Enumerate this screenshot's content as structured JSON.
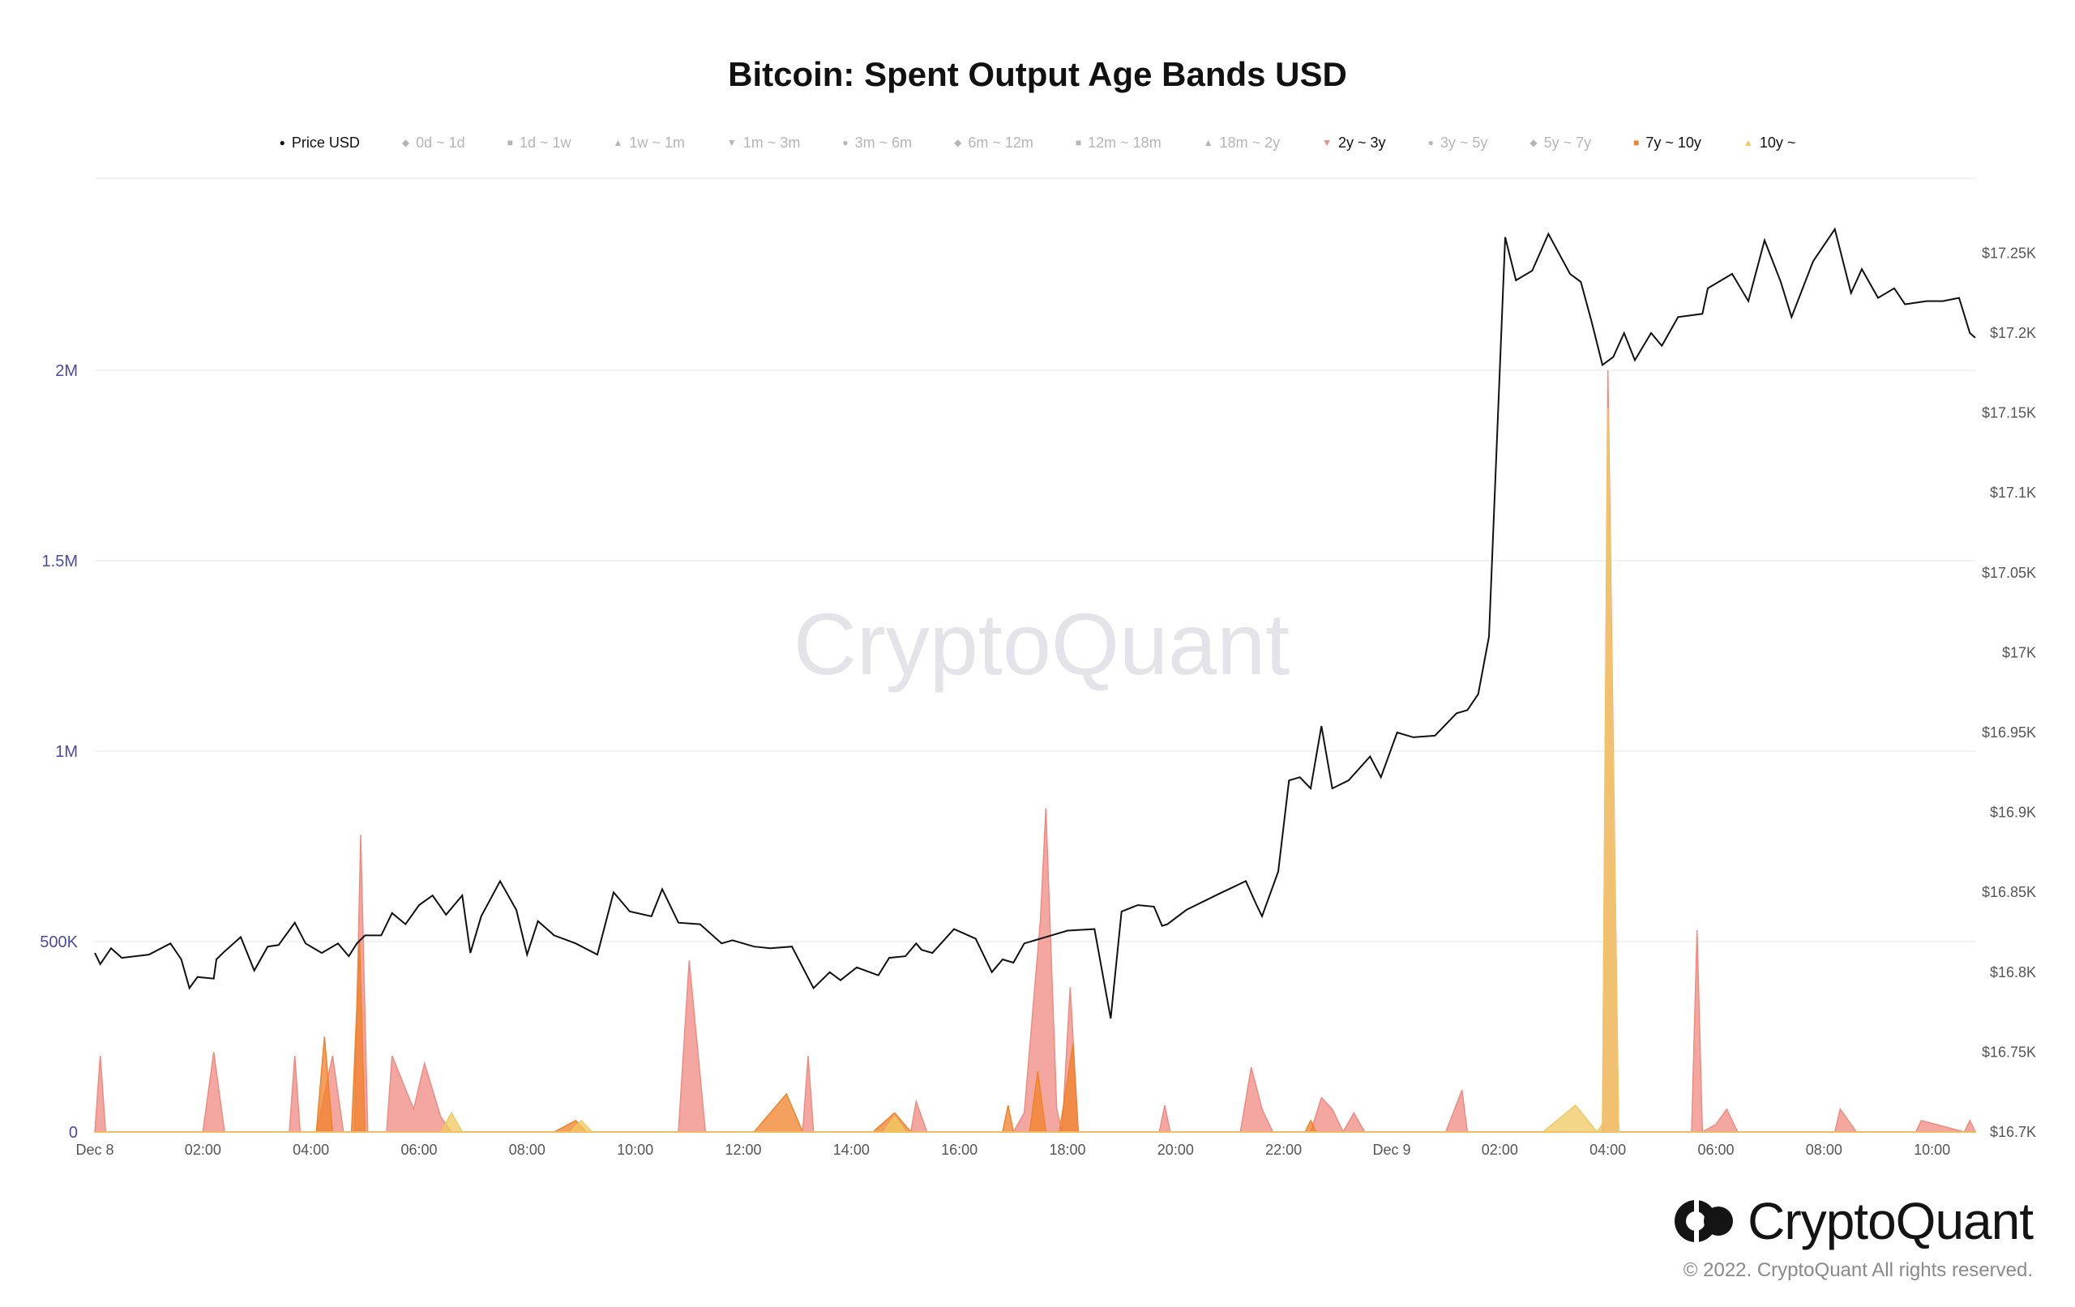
{
  "chart_data": {
    "type": "area",
    "title": "Bitcoin: Spent Output Age Bands USD",
    "watermark": "CryptoQuant",
    "legend_placement": "top",
    "grid": true,
    "legend": [
      {
        "name": "Price USD",
        "marker": "●",
        "color": "#111111",
        "active": true
      },
      {
        "name": "0d ~ 1d",
        "marker": "◆",
        "color": "#b5b5b5",
        "active": false
      },
      {
        "name": "1d ~ 1w",
        "marker": "■",
        "color": "#b5b5b5",
        "active": false
      },
      {
        "name": "1w ~ 1m",
        "marker": "▲",
        "color": "#b5b5b5",
        "active": false
      },
      {
        "name": "1m ~ 3m",
        "marker": "▼",
        "color": "#b5b5b5",
        "active": false
      },
      {
        "name": "3m ~ 6m",
        "marker": "●",
        "color": "#b5b5b5",
        "active": false
      },
      {
        "name": "6m ~ 12m",
        "marker": "◆",
        "color": "#b5b5b5",
        "active": false
      },
      {
        "name": "12m ~ 18m",
        "marker": "■",
        "color": "#b5b5b5",
        "active": false
      },
      {
        "name": "18m ~ 2y",
        "marker": "▲",
        "color": "#b5b5b5",
        "active": false
      },
      {
        "name": "2y ~ 3y",
        "marker": "▼",
        "color": "#f08a80",
        "active": true
      },
      {
        "name": "3y ~ 5y",
        "marker": "●",
        "color": "#b5b5b5",
        "active": false
      },
      {
        "name": "5y ~ 7y",
        "marker": "◆",
        "color": "#b5b5b5",
        "active": false
      },
      {
        "name": "7y ~ 10y",
        "marker": "■",
        "color": "#f0822a",
        "active": true
      },
      {
        "name": "10y ~",
        "marker": "▲",
        "color": "#f0c860",
        "active": true
      }
    ],
    "x_range_hours": [
      0,
      34.8
    ],
    "x_ticks": [
      {
        "label": "Dec 8",
        "hour": 0
      },
      {
        "label": "02:00",
        "hour": 2
      },
      {
        "label": "04:00",
        "hour": 4
      },
      {
        "label": "06:00",
        "hour": 6
      },
      {
        "label": "08:00",
        "hour": 8
      },
      {
        "label": "10:00",
        "hour": 10
      },
      {
        "label": "12:00",
        "hour": 12
      },
      {
        "label": "14:00",
        "hour": 14
      },
      {
        "label": "16:00",
        "hour": 16
      },
      {
        "label": "18:00",
        "hour": 18
      },
      {
        "label": "20:00",
        "hour": 20
      },
      {
        "label": "22:00",
        "hour": 22
      },
      {
        "label": "Dec 9",
        "hour": 24
      },
      {
        "label": "02:00",
        "hour": 26
      },
      {
        "label": "04:00",
        "hour": 28
      },
      {
        "label": "06:00",
        "hour": 30
      },
      {
        "label": "08:00",
        "hour": 32
      },
      {
        "label": "10:00",
        "hour": 34
      }
    ],
    "left_axis": {
      "ylim": [
        0,
        2500000
      ],
      "ticks": [
        {
          "label": "0",
          "value": 0
        },
        {
          "label": "500K",
          "value": 500000
        },
        {
          "label": "1M",
          "value": 1000000
        },
        {
          "label": "1.5M",
          "value": 1500000
        },
        {
          "label": "2M",
          "value": 2000000
        }
      ]
    },
    "right_axis": {
      "ylim": [
        16700,
        17280
      ],
      "ticks": [
        {
          "label": "$16.7K",
          "value": 16700
        },
        {
          "label": "$16.75K",
          "value": 16750
        },
        {
          "label": "$16.8K",
          "value": 16800
        },
        {
          "label": "$16.85K",
          "value": 16850
        },
        {
          "label": "$16.9K",
          "value": 16900
        },
        {
          "label": "$16.95K",
          "value": 16950
        },
        {
          "label": "$17K",
          "value": 17000
        },
        {
          "label": "$17.05K",
          "value": 17050
        },
        {
          "label": "$17.1K",
          "value": 17100
        },
        {
          "label": "$17.15K",
          "value": 17150
        },
        {
          "label": "$17.2K",
          "value": 17200
        },
        {
          "label": "$17.25K",
          "value": 17250
        }
      ]
    },
    "series": [
      {
        "name": "2y ~ 3y",
        "color": "#f08a80",
        "axis": "left",
        "points": [
          [
            0,
            0
          ],
          [
            0.1,
            200000
          ],
          [
            0.2,
            0
          ],
          [
            2.0,
            0
          ],
          [
            2.2,
            210000
          ],
          [
            2.4,
            0
          ],
          [
            3.6,
            0
          ],
          [
            3.7,
            200000
          ],
          [
            3.8,
            0
          ],
          [
            4.1,
            0
          ],
          [
            4.4,
            200000
          ],
          [
            4.6,
            0
          ],
          [
            4.8,
            0
          ],
          [
            4.92,
            780000
          ],
          [
            5.05,
            0
          ],
          [
            5.4,
            0
          ],
          [
            5.5,
            200000
          ],
          [
            5.9,
            60000
          ],
          [
            6.1,
            180000
          ],
          [
            6.4,
            40000
          ],
          [
            6.6,
            0
          ],
          [
            10.8,
            0
          ],
          [
            11.0,
            450000
          ],
          [
            11.3,
            0
          ],
          [
            13.1,
            0
          ],
          [
            13.2,
            200000
          ],
          [
            13.3,
            0
          ],
          [
            15.1,
            0
          ],
          [
            15.2,
            80000
          ],
          [
            15.4,
            0
          ],
          [
            17.0,
            0
          ],
          [
            17.2,
            50000
          ],
          [
            17.5,
            560000
          ],
          [
            17.6,
            850000
          ],
          [
            17.8,
            60000
          ],
          [
            17.9,
            0
          ],
          [
            18.05,
            380000
          ],
          [
            18.2,
            0
          ],
          [
            19.7,
            0
          ],
          [
            19.8,
            70000
          ],
          [
            19.9,
            0
          ],
          [
            21.2,
            0
          ],
          [
            21.4,
            170000
          ],
          [
            21.6,
            60000
          ],
          [
            21.8,
            0
          ],
          [
            22.5,
            0
          ],
          [
            22.7,
            90000
          ],
          [
            22.9,
            60000
          ],
          [
            23.1,
            0
          ],
          [
            23.3,
            50000
          ],
          [
            23.5,
            0
          ],
          [
            25.0,
            0
          ],
          [
            25.3,
            110000
          ],
          [
            25.4,
            0
          ],
          [
            27.3,
            0
          ],
          [
            27.9,
            0
          ],
          [
            28.0,
            2000000
          ],
          [
            28.2,
            0
          ],
          [
            29.55,
            0
          ],
          [
            29.65,
            530000
          ],
          [
            29.75,
            0
          ],
          [
            30.0,
            20000
          ],
          [
            30.2,
            60000
          ],
          [
            30.4,
            0
          ],
          [
            32.2,
            0
          ],
          [
            32.3,
            60000
          ],
          [
            32.6,
            0
          ],
          [
            33.7,
            0
          ],
          [
            33.8,
            30000
          ],
          [
            34.6,
            0
          ],
          [
            34.7,
            30000
          ],
          [
            34.8,
            0
          ]
        ]
      },
      {
        "name": "7y ~ 10y",
        "color": "#f0822a",
        "axis": "left",
        "points": [
          [
            0,
            0
          ],
          [
            4.1,
            0
          ],
          [
            4.25,
            250000
          ],
          [
            4.4,
            0
          ],
          [
            4.75,
            0
          ],
          [
            4.9,
            500000
          ],
          [
            5.0,
            0
          ],
          [
            8.5,
            0
          ],
          [
            8.9,
            30000
          ],
          [
            9.1,
            0
          ],
          [
            12.2,
            0
          ],
          [
            12.8,
            100000
          ],
          [
            13.1,
            0
          ],
          [
            14.4,
            0
          ],
          [
            14.8,
            50000
          ],
          [
            15.1,
            0
          ],
          [
            16.8,
            0
          ],
          [
            16.9,
            70000
          ],
          [
            17.0,
            0
          ],
          [
            17.3,
            0
          ],
          [
            17.45,
            160000
          ],
          [
            17.6,
            0
          ],
          [
            17.85,
            0
          ],
          [
            18.1,
            230000
          ],
          [
            18.2,
            0
          ],
          [
            22.4,
            0
          ],
          [
            22.5,
            30000
          ],
          [
            22.6,
            0
          ],
          [
            34.8,
            0
          ]
        ]
      },
      {
        "name": "10y ~",
        "color": "#f0c860",
        "axis": "left",
        "points": [
          [
            0,
            0
          ],
          [
            6.4,
            0
          ],
          [
            6.6,
            50000
          ],
          [
            6.8,
            0
          ],
          [
            8.8,
            0
          ],
          [
            9.0,
            30000
          ],
          [
            9.2,
            0
          ],
          [
            14.6,
            0
          ],
          [
            14.8,
            40000
          ],
          [
            15.0,
            0
          ],
          [
            26.8,
            0
          ],
          [
            27.4,
            70000
          ],
          [
            27.8,
            0
          ],
          [
            27.9,
            20000
          ],
          [
            28.0,
            1900000
          ],
          [
            28.2,
            0
          ],
          [
            34.8,
            0
          ]
        ]
      },
      {
        "name": "Price USD",
        "color": "#111111",
        "axis": "right",
        "points": [
          [
            0,
            16812
          ],
          [
            0.1,
            16805
          ],
          [
            0.3,
            16815
          ],
          [
            0.5,
            16809
          ],
          [
            1.0,
            16811
          ],
          [
            1.4,
            16818
          ],
          [
            1.6,
            16808
          ],
          [
            1.75,
            16790
          ],
          [
            1.9,
            16797
          ],
          [
            2.2,
            16796
          ],
          [
            2.25,
            16808
          ],
          [
            2.4,
            16813
          ],
          [
            2.7,
            16822
          ],
          [
            2.95,
            16801
          ],
          [
            3.2,
            16816
          ],
          [
            3.4,
            16817
          ],
          [
            3.7,
            16831
          ],
          [
            3.9,
            16818
          ],
          [
            4.2,
            16812
          ],
          [
            4.5,
            16818
          ],
          [
            4.7,
            16810
          ],
          [
            4.85,
            16818
          ],
          [
            5.0,
            16823
          ],
          [
            5.3,
            16823
          ],
          [
            5.5,
            16837
          ],
          [
            5.75,
            16830
          ],
          [
            6.0,
            16842
          ],
          [
            6.25,
            16848
          ],
          [
            6.5,
            16836
          ],
          [
            6.8,
            16848
          ],
          [
            6.95,
            16812
          ],
          [
            7.15,
            16835
          ],
          [
            7.5,
            16857
          ],
          [
            7.8,
            16839
          ],
          [
            8.0,
            16811
          ],
          [
            8.2,
            16832
          ],
          [
            8.5,
            16823
          ],
          [
            8.9,
            16818
          ],
          [
            9.3,
            16811
          ],
          [
            9.6,
            16850
          ],
          [
            9.9,
            16838
          ],
          [
            10.3,
            16835
          ],
          [
            10.5,
            16852
          ],
          [
            10.8,
            16831
          ],
          [
            11.2,
            16830
          ],
          [
            11.6,
            16818
          ],
          [
            11.8,
            16820
          ],
          [
            12.2,
            16816
          ],
          [
            12.5,
            16815
          ],
          [
            12.9,
            16816
          ],
          [
            13.3,
            16790
          ],
          [
            13.6,
            16800
          ],
          [
            13.8,
            16795
          ],
          [
            14.1,
            16803
          ],
          [
            14.5,
            16798
          ],
          [
            14.7,
            16809
          ],
          [
            15.0,
            16810
          ],
          [
            15.2,
            16818
          ],
          [
            15.3,
            16814
          ],
          [
            15.5,
            16812
          ],
          [
            15.9,
            16827
          ],
          [
            16.3,
            16821
          ],
          [
            16.6,
            16800
          ],
          [
            16.8,
            16808
          ],
          [
            17.0,
            16806
          ],
          [
            17.2,
            16818
          ],
          [
            17.6,
            16822
          ],
          [
            18.0,
            16826
          ],
          [
            18.5,
            16827
          ],
          [
            18.8,
            16771
          ],
          [
            19.0,
            16838
          ],
          [
            19.3,
            16842
          ],
          [
            19.6,
            16841
          ],
          [
            19.75,
            16829
          ],
          [
            19.85,
            16830
          ],
          [
            20.2,
            16839
          ],
          [
            20.8,
            16849
          ],
          [
            21.3,
            16857
          ],
          [
            21.5,
            16842
          ],
          [
            21.6,
            16835
          ],
          [
            21.9,
            16863
          ],
          [
            22.1,
            16920
          ],
          [
            22.3,
            16922
          ],
          [
            22.5,
            16915
          ],
          [
            22.7,
            16954
          ],
          [
            22.9,
            16915
          ],
          [
            23.2,
            16920
          ],
          [
            23.6,
            16935
          ],
          [
            23.8,
            16922
          ],
          [
            24.1,
            16950
          ],
          [
            24.4,
            16947
          ],
          [
            24.8,
            16948
          ],
          [
            25.2,
            16962
          ],
          [
            25.4,
            16964
          ],
          [
            25.6,
            16974
          ],
          [
            25.8,
            17010
          ],
          [
            26.1,
            17260
          ],
          [
            26.3,
            17233
          ],
          [
            26.6,
            17239
          ],
          [
            26.9,
            17262
          ],
          [
            27.3,
            17237
          ],
          [
            27.5,
            17232
          ],
          [
            27.7,
            17207
          ],
          [
            27.9,
            17180
          ],
          [
            28.1,
            17185
          ],
          [
            28.3,
            17200
          ],
          [
            28.5,
            17183
          ],
          [
            28.8,
            17200
          ],
          [
            29.0,
            17192
          ],
          [
            29.3,
            17210
          ],
          [
            29.75,
            17212
          ],
          [
            29.85,
            17228
          ],
          [
            30.3,
            17237
          ],
          [
            30.6,
            17220
          ],
          [
            30.9,
            17258
          ],
          [
            31.2,
            17232
          ],
          [
            31.4,
            17210
          ],
          [
            31.8,
            17245
          ],
          [
            32.2,
            17265
          ],
          [
            32.5,
            17225
          ],
          [
            32.7,
            17240
          ],
          [
            33.0,
            17222
          ],
          [
            33.3,
            17228
          ],
          [
            33.5,
            17218
          ],
          [
            33.9,
            17220
          ],
          [
            34.2,
            17220
          ],
          [
            34.5,
            17222
          ],
          [
            34.7,
            17200
          ],
          [
            34.8,
            17197
          ]
        ]
      }
    ]
  },
  "brand": {
    "name": "CryptoQuant",
    "copyright": "© 2022. CryptoQuant All rights reserved."
  }
}
